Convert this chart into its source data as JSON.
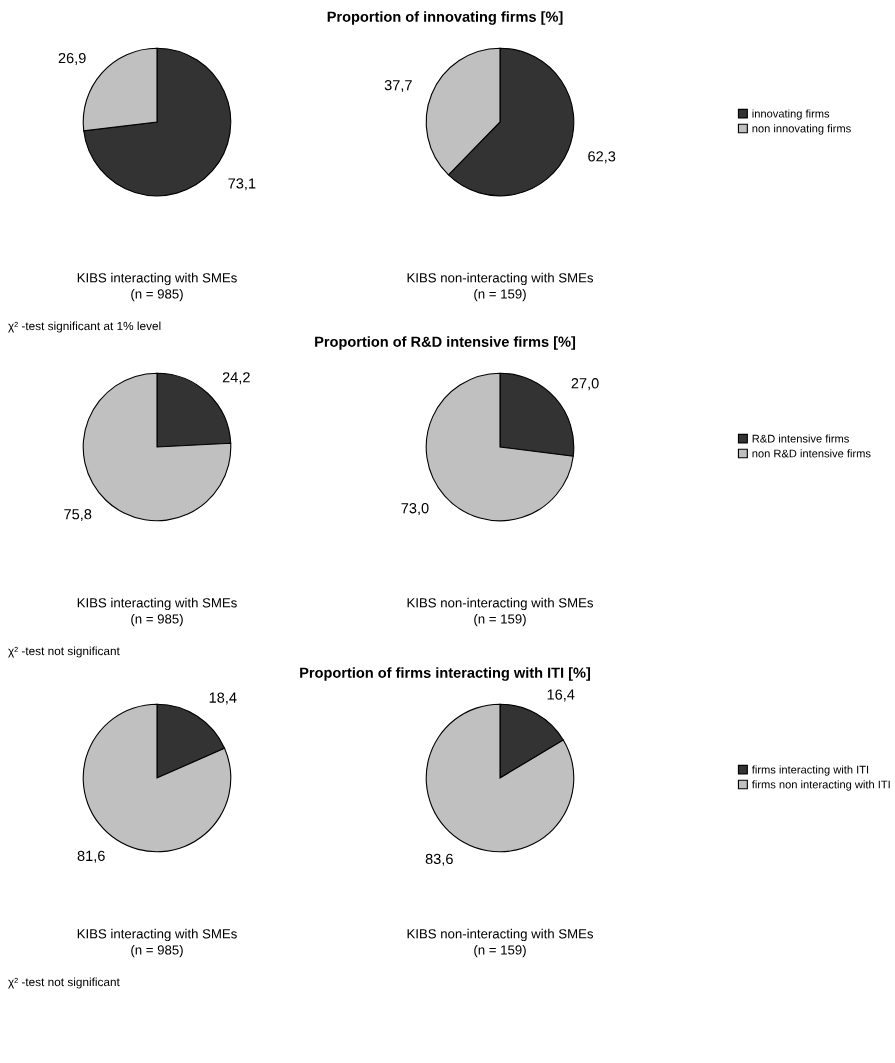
{
  "chart_data": [
    {
      "type": "pie",
      "xlabel": "KIBS interacting with SMEs\n(n = 985)",
      "annotations": [
        "χ² -test significant at 1% level"
      ],
      "categories": [
        "innovating firms",
        "non innovating firms"
      ],
      "values": [
        73.1,
        26.9
      ],
      "value_labels": [
        "73,1",
        "26,9"
      ],
      "colors": [
        "#333333",
        "#c0c0c0"
      ],
      "legend": "right"
    },
    {
      "type": "pie",
      "title": "Proportion of innovating firms [%]",
      "xlabel": "KIBS non-interacting with SMEs\n(n = 159)",
      "categories": [
        null,
        null
      ],
      "values": [
        62.3,
        37.7
      ],
      "value_labels": [
        "62,3",
        "37,7"
      ],
      "colors": [
        "#333333",
        "#c0c0c0"
      ]
    },
    {
      "type": "pie",
      "xlabel": "KIBS interacting with SMEs\n(n = 985)",
      "annotations": [
        "χ² -test not significant"
      ],
      "categories": [
        "R&D intensive firms",
        "non R&D intensive firms"
      ],
      "values": [
        24.2,
        75.8
      ],
      "value_labels": [
        "24,2",
        "75,8"
      ],
      "colors": [
        "#333333",
        "#c0c0c0"
      ],
      "legend": "right"
    },
    {
      "type": "pie",
      "title": "Proportion of R&D intensive firms [%]",
      "xlabel": "KIBS non-interacting with SMEs\n(n = 159)",
      "categories": [
        null,
        null
      ],
      "values": [
        27.0,
        73.0
      ],
      "value_labels": [
        "27,0",
        "73,0"
      ],
      "colors": [
        "#333333",
        "#c0c0c0"
      ]
    },
    {
      "type": "pie",
      "xlabel": "KIBS interacting with SMEs\n(n = 985)",
      "annotations": [
        "χ² -test not significant"
      ],
      "categories": [
        "firms interacting with ITI",
        "firms non interacting with ITI"
      ],
      "values": [
        18.4,
        81.6
      ],
      "value_labels": [
        "18,4",
        "81,6"
      ],
      "colors": [
        "#333333",
        "#c0c0c0"
      ],
      "legend": "right"
    },
    {
      "type": "pie",
      "title": "Proportion of firms interacting with ITI [%]",
      "xlabel": "KIBS non-interacting with SMEs\n(n = 159)",
      "categories": [
        null,
        null
      ],
      "values": [
        16.4,
        83.6
      ],
      "value_labels": [
        "16,4",
        "83,6"
      ],
      "colors": [
        "#333333",
        "#c0c0c0"
      ]
    }
  ]
}
